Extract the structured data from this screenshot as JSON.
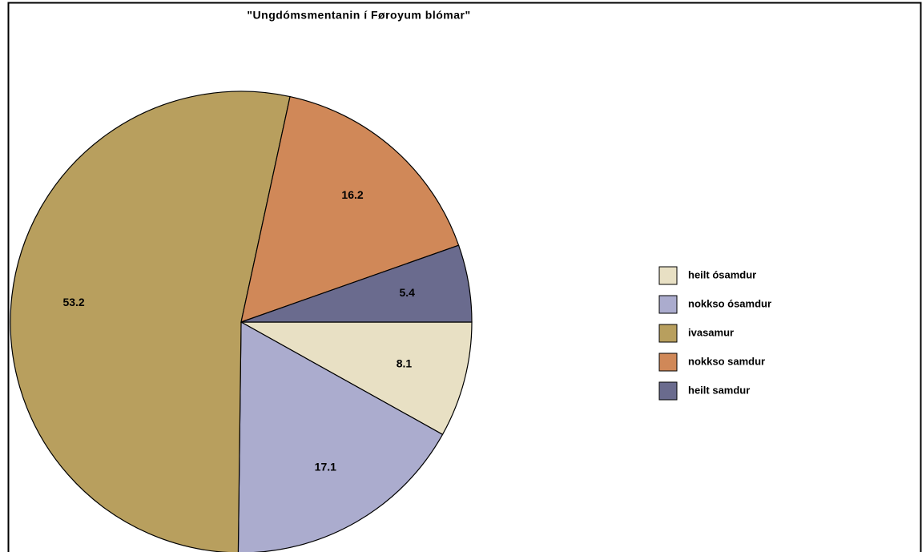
{
  "chart_data": {
    "type": "pie",
    "title": "\"Ungdómsmentanin í Føroyum blómar\"",
    "categories": [
      "heilt ósamdur",
      "nokkso ósamdur",
      "ivasamur",
      "nokkso samdur",
      "heilt samdur"
    ],
    "values": [
      8.1,
      17.1,
      53.2,
      16.2,
      5.4
    ],
    "colors": [
      "#E8E0C4",
      "#ABACCE",
      "#B89F5E",
      "#D08858",
      "#6A6B8E"
    ],
    "legend": "right"
  }
}
